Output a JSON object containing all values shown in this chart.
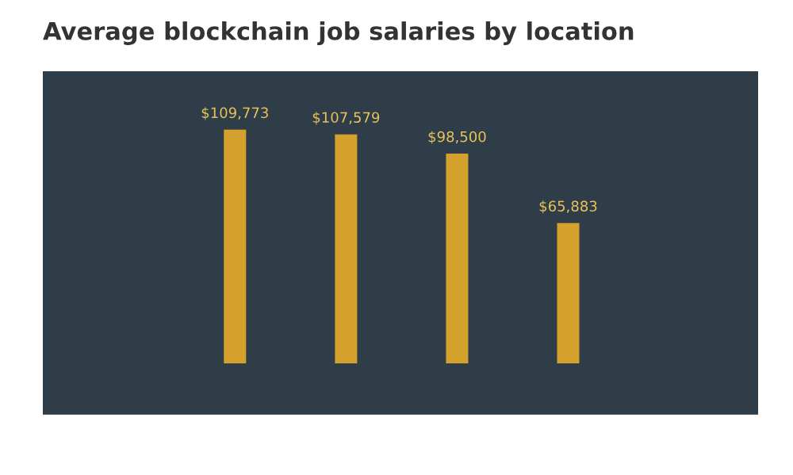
{
  "chart_data": {
    "type": "bar",
    "title": "Average blockchain job salaries by location",
    "categories": [
      null,
      null,
      null,
      null
    ],
    "series": [
      {
        "color": "#d4a22c",
        "values": [
          109773,
          107579,
          98500,
          65883
        ],
        "value_labels": [
          "$109,773",
          "$107,579",
          "$98,500",
          "$65,883"
        ]
      }
    ],
    "grid": false,
    "legend": false
  }
}
